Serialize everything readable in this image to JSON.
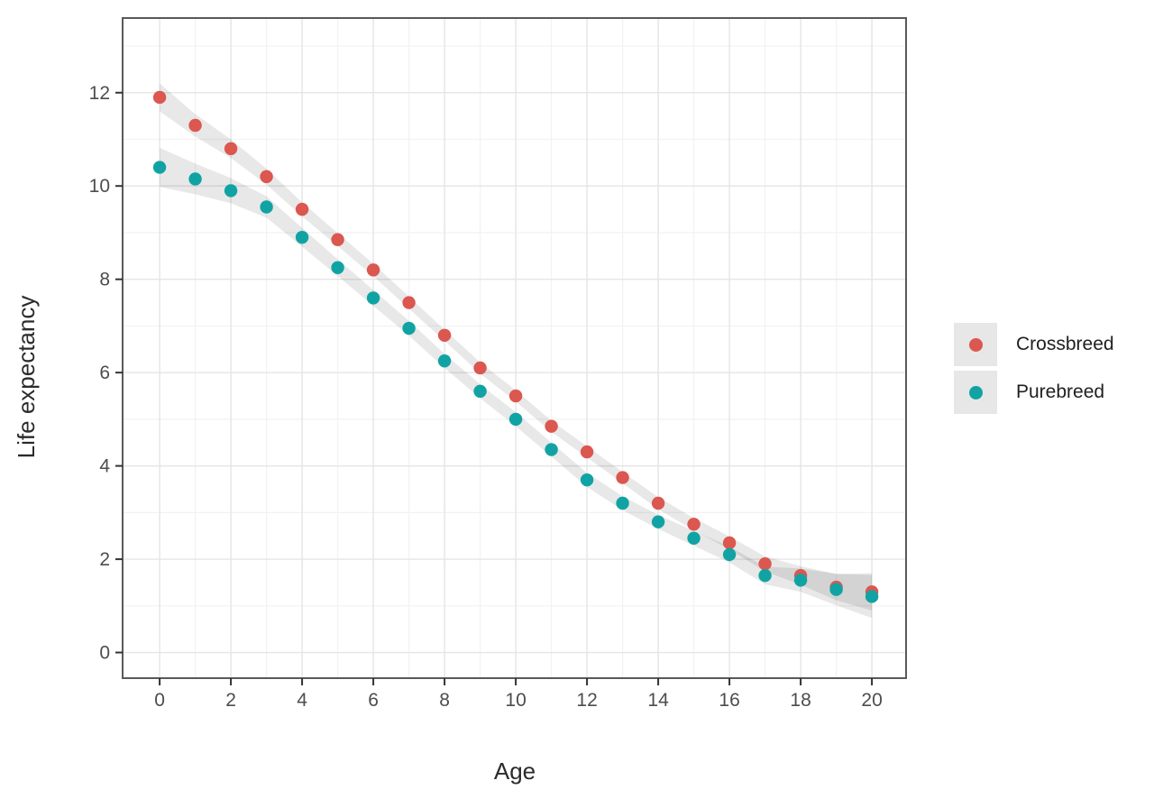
{
  "chart_data": {
    "type": "scatter",
    "title": "",
    "xlabel": "Age",
    "ylabel": "Life expectancy",
    "x": [
      0,
      1,
      2,
      3,
      4,
      5,
      6,
      7,
      8,
      9,
      10,
      11,
      12,
      13,
      14,
      15,
      16,
      17,
      18,
      19,
      20
    ],
    "series": [
      {
        "name": "Crossbreed",
        "color": "#DB574F",
        "values": [
          11.9,
          11.3,
          10.8,
          10.2,
          9.5,
          8.85,
          8.2,
          7.5,
          6.8,
          6.1,
          5.5,
          4.85,
          4.3,
          3.75,
          3.2,
          2.75,
          2.35,
          1.9,
          1.65,
          1.4,
          1.3
        ],
        "band_halfwidth": [
          0.3,
          0.24,
          0.2,
          0.17,
          0.15,
          0.14,
          0.13,
          0.13,
          0.12,
          0.12,
          0.12,
          0.12,
          0.12,
          0.12,
          0.13,
          0.13,
          0.14,
          0.16,
          0.2,
          0.28,
          0.4
        ]
      },
      {
        "name": "Purebreed",
        "color": "#11A3A4",
        "values": [
          10.4,
          10.15,
          9.9,
          9.55,
          8.9,
          8.25,
          7.6,
          6.95,
          6.25,
          5.6,
          5.0,
          4.35,
          3.7,
          3.2,
          2.8,
          2.45,
          2.1,
          1.65,
          1.55,
          1.35,
          1.2
        ],
        "band_halfwidth": [
          0.42,
          0.33,
          0.27,
          0.23,
          0.2,
          0.18,
          0.17,
          0.16,
          0.15,
          0.15,
          0.15,
          0.15,
          0.15,
          0.15,
          0.15,
          0.16,
          0.17,
          0.19,
          0.25,
          0.34,
          0.46
        ]
      }
    ],
    "x_ticks": [
      0,
      2,
      4,
      6,
      8,
      10,
      12,
      14,
      16,
      18,
      20
    ],
    "y_ticks": [
      0,
      2,
      4,
      6,
      8,
      10,
      12
    ],
    "x_minor_ticks": [
      1,
      3,
      5,
      7,
      9,
      11,
      13,
      15,
      17,
      19
    ],
    "y_minor_ticks": [
      1,
      3,
      5,
      7,
      9,
      11,
      13
    ],
    "xlim": [
      -1.04,
      20.96
    ],
    "ylim": [
      -0.55,
      13.6
    ],
    "grid": "major+minor",
    "legend_position": "right",
    "band_color": "rgba(0,0,0,0.09)"
  },
  "colors": {
    "background": "#ffffff",
    "panel_border": "#595959",
    "major_grid": "#e5e5e5",
    "minor_grid": "#f2f2f2",
    "tick": "#333333",
    "tick_label": "#4d4d4d",
    "axis_title": "#2b2b2b",
    "legend_key_bg": "#e7e7e7",
    "legend_label": "#1f1f1f"
  }
}
